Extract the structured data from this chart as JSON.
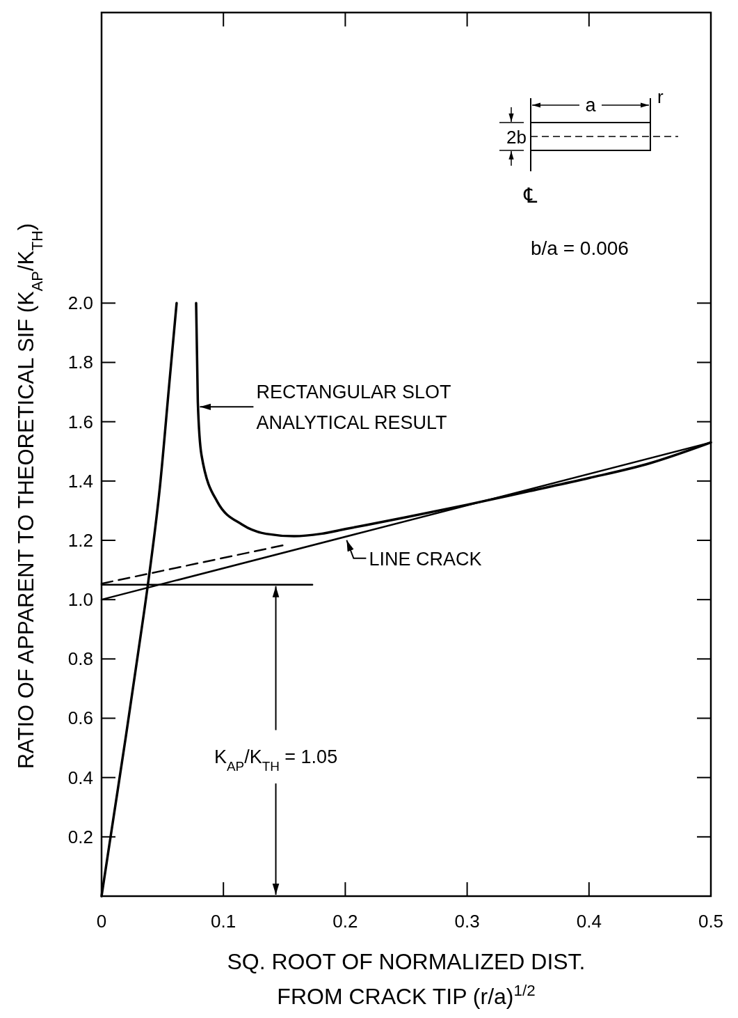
{
  "chart_data": {
    "type": "line",
    "xlabel": "SQ. ROOT OF NORMALIZED DIST. FROM CRACK TIP (r/a)$^{1/2}$",
    "ylabel": "RATIO OF APPARENT TO THEORETICAL SIF (K$_{AP}$/K$_{TH}$)",
    "xlim": [
      0,
      0.5
    ],
    "xticks": [
      0,
      {
        "value": 0.1,
        "label": "0.1"
      },
      0.2,
      0.3,
      0.4,
      0.5
    ],
    "ylim": [
      0,
      2.98
    ],
    "yticks": [
      {
        "value": 0,
        "label": null
      },
      0.2,
      0.4,
      0.6,
      0.8,
      {
        "value": 1,
        "label": "1.0"
      },
      1.2,
      1.4,
      1.6,
      1.8,
      {
        "value": 2,
        "label": "2.0"
      }
    ],
    "grid": false,
    "series": [
      {
        "color": "#000000",
        "line_style": "solid",
        "x": [
          0,
          0.01,
          0.02,
          0.03,
          0.038,
          0.048,
          0.0554,
          0.0616,
          0.07,
          0.0776,
          0.079,
          0.082,
          0.095,
          0.115,
          0.135,
          0.158,
          0.18,
          0.2,
          0.25,
          0.3,
          0.35,
          0.4,
          0.45,
          0.5
        ],
        "values": [
          0,
          0.27,
          0.54,
          0.82,
          1.05,
          1.385,
          1.72,
          2.0,
          null,
          2.0,
          1.667,
          1.488,
          1.33,
          1.254,
          1.222,
          1.214,
          1.222,
          1.238,
          1.278,
          1.32,
          1.365,
          1.41,
          1.46,
          1.53
        ]
      },
      {
        "color": "#000000",
        "line_style": "solid",
        "x": [
          0,
          0.5
        ],
        "values": [
          1.0,
          1.53
        ]
      },
      {
        "color": "#000000",
        "line_style": "dashed",
        "x": [
          0,
          0.151
        ],
        "values": [
          1.054,
          1.185
        ]
      },
      {
        "color": "#000000",
        "line_style": "solid",
        "x": [
          0,
          0.173
        ],
        "values": [
          1.05,
          1.05
        ]
      }
    ],
    "annotations": [
      "RECTANGULAR SLOT ANALYTICAL RESULT",
      {
        "text": "LINE CRACK",
        "x": 0.2,
        "y": 1.21
      },
      "K$_{AP}$/K$_{TH}$ = 1.05",
      "a",
      "r",
      "2b",
      "℄",
      "b/a = 0.006"
    ]
  }
}
